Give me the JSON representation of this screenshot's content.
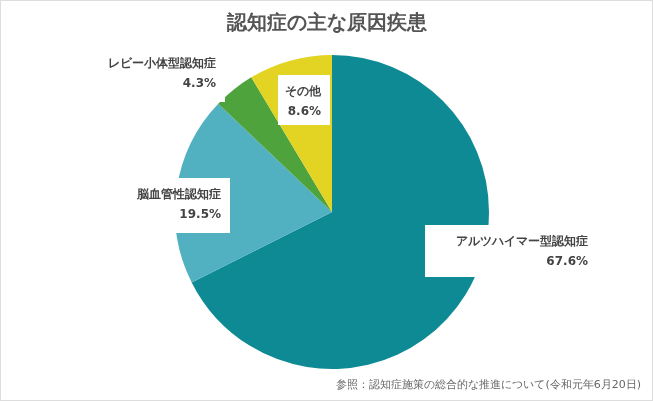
{
  "chart_data": {
    "type": "pie",
    "title": "認知症の主な原因疾患",
    "categories": [
      "アルツハイマー型認知症",
      "脳血管性認知症",
      "レビー小体型認知症",
      "その他"
    ],
    "values": [
      67.6,
      19.5,
      4.3,
      8.6
    ],
    "value_labels": [
      "67.6%",
      "19.5%",
      "4.3%",
      "8.6%"
    ],
    "colors": [
      "#0e8a94",
      "#52b1c0",
      "#4fa33d",
      "#e3d424"
    ],
    "data_labels": true,
    "legend": false,
    "annotations": [
      "参照：認知症施策の総合的な推進について(令和元年6月20日)"
    ]
  }
}
